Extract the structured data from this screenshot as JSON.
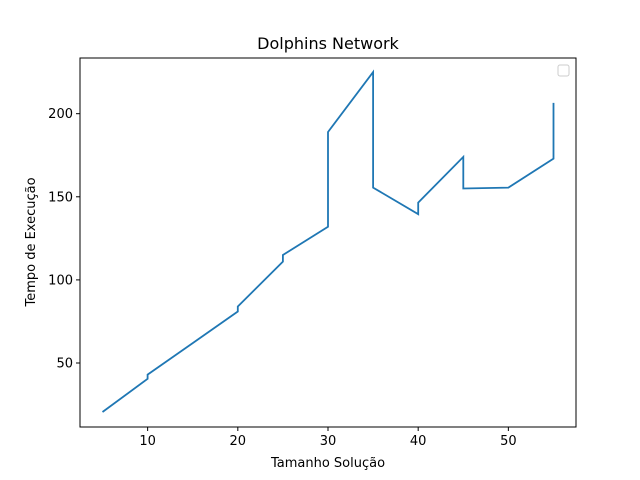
{
  "chart_data": {
    "type": "line",
    "title": "Dolphins Network",
    "xlabel": "Tamanho Solução",
    "ylabel": "Tempo de Execução",
    "xlim": [
      2.5,
      57.5
    ],
    "ylim": [
      11.5,
      233.5
    ],
    "xticks": [
      10,
      20,
      30,
      40,
      50
    ],
    "yticks": [
      50,
      100,
      150,
      200
    ],
    "grid": false,
    "legend": {
      "position": "top-right",
      "entries": []
    },
    "colors": {
      "series": "#1f77b4",
      "axes": "#000000",
      "background": "#ffffff"
    },
    "series": [
      {
        "x": [
          5,
          10,
          10,
          15,
          20,
          20,
          25,
          25,
          30,
          30,
          35,
          35,
          40,
          40,
          45,
          45,
          50,
          55,
          55
        ],
        "y": [
          20.5,
          40.5,
          43,
          62,
          81,
          84,
          111,
          115,
          132,
          189,
          225,
          155.5,
          139.5,
          146.5,
          174,
          155,
          155.5,
          173,
          206.5
        ]
      }
    ]
  }
}
